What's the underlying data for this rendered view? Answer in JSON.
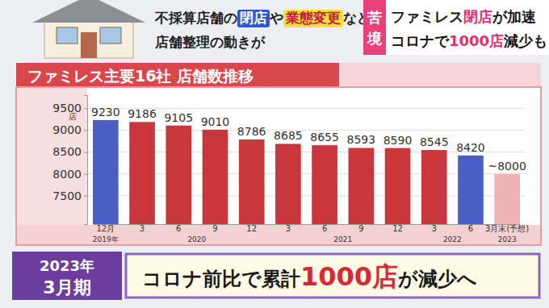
{
  "header": {
    "lines": [
      [
        {
          "text": "不採算店舗の"
        },
        {
          "text": "閉店",
          "style": "box-blue"
        },
        {
          "text": "や"
        },
        {
          "text": "業態変更",
          "style": "box-yellow"
        },
        {
          "text": "など"
        }
      ],
      [
        {
          "text": "店舗整理の動きが"
        }
      ]
    ]
  },
  "banner": {
    "tag": [
      "苦",
      "境"
    ],
    "lines": [
      [
        {
          "text": "ファミレス"
        },
        {
          "text": "閉店",
          "accent": true
        },
        {
          "text": "が加速"
        }
      ],
      [
        {
          "text": "コロナで"
        },
        {
          "text": "1000店",
          "accent": true
        },
        {
          "text": "減少も"
        }
      ]
    ]
  },
  "chart_data": {
    "type": "bar",
    "title": "ファミレス主要16社 店舗数推移",
    "y_label": "店",
    "categories": [
      "12月",
      "3",
      "6",
      "9",
      "12",
      "3",
      "6",
      "9",
      "12",
      "3",
      "6",
      "3月末(予想)"
    ],
    "category_groups": [
      {
        "label": "2019年",
        "from": 0,
        "to": 0
      },
      {
        "label": "2020",
        "from": 1,
        "to": 4
      },
      {
        "label": "2021",
        "from": 5,
        "to": 8
      },
      {
        "label": "2022",
        "from": 9,
        "to": 10
      },
      {
        "label": "2023",
        "from": 11,
        "to": 11
      }
    ],
    "values": [
      9230,
      9186,
      9105,
      9010,
      8786,
      8685,
      8655,
      8593,
      8590,
      8545,
      8420,
      8000
    ],
    "value_labels": [
      "9230",
      "9186",
      "9105",
      "9010",
      "8786",
      "8685",
      "8655",
      "8593",
      "8590",
      "8545",
      "8420",
      "~8000"
    ],
    "colors": [
      "#4a5ec4",
      "#c9373d",
      "#c9373d",
      "#c9373d",
      "#c9373d",
      "#c9373d",
      "#c9373d",
      "#c9373d",
      "#c9373d",
      "#c9373d",
      "#4a5ec4",
      "#efb3b6"
    ],
    "ylim": [
      6850,
      9800
    ],
    "yticks": [
      7500,
      8000,
      8500,
      9000,
      9500
    ],
    "grid": true,
    "data_labels": true
  },
  "footer": {
    "period": [
      "2023年",
      "3月期"
    ],
    "message": [
      {
        "text": "コロナ前比で累計"
      },
      {
        "text": "1000店",
        "accent": true
      },
      {
        "text": "が減少へ"
      }
    ]
  }
}
